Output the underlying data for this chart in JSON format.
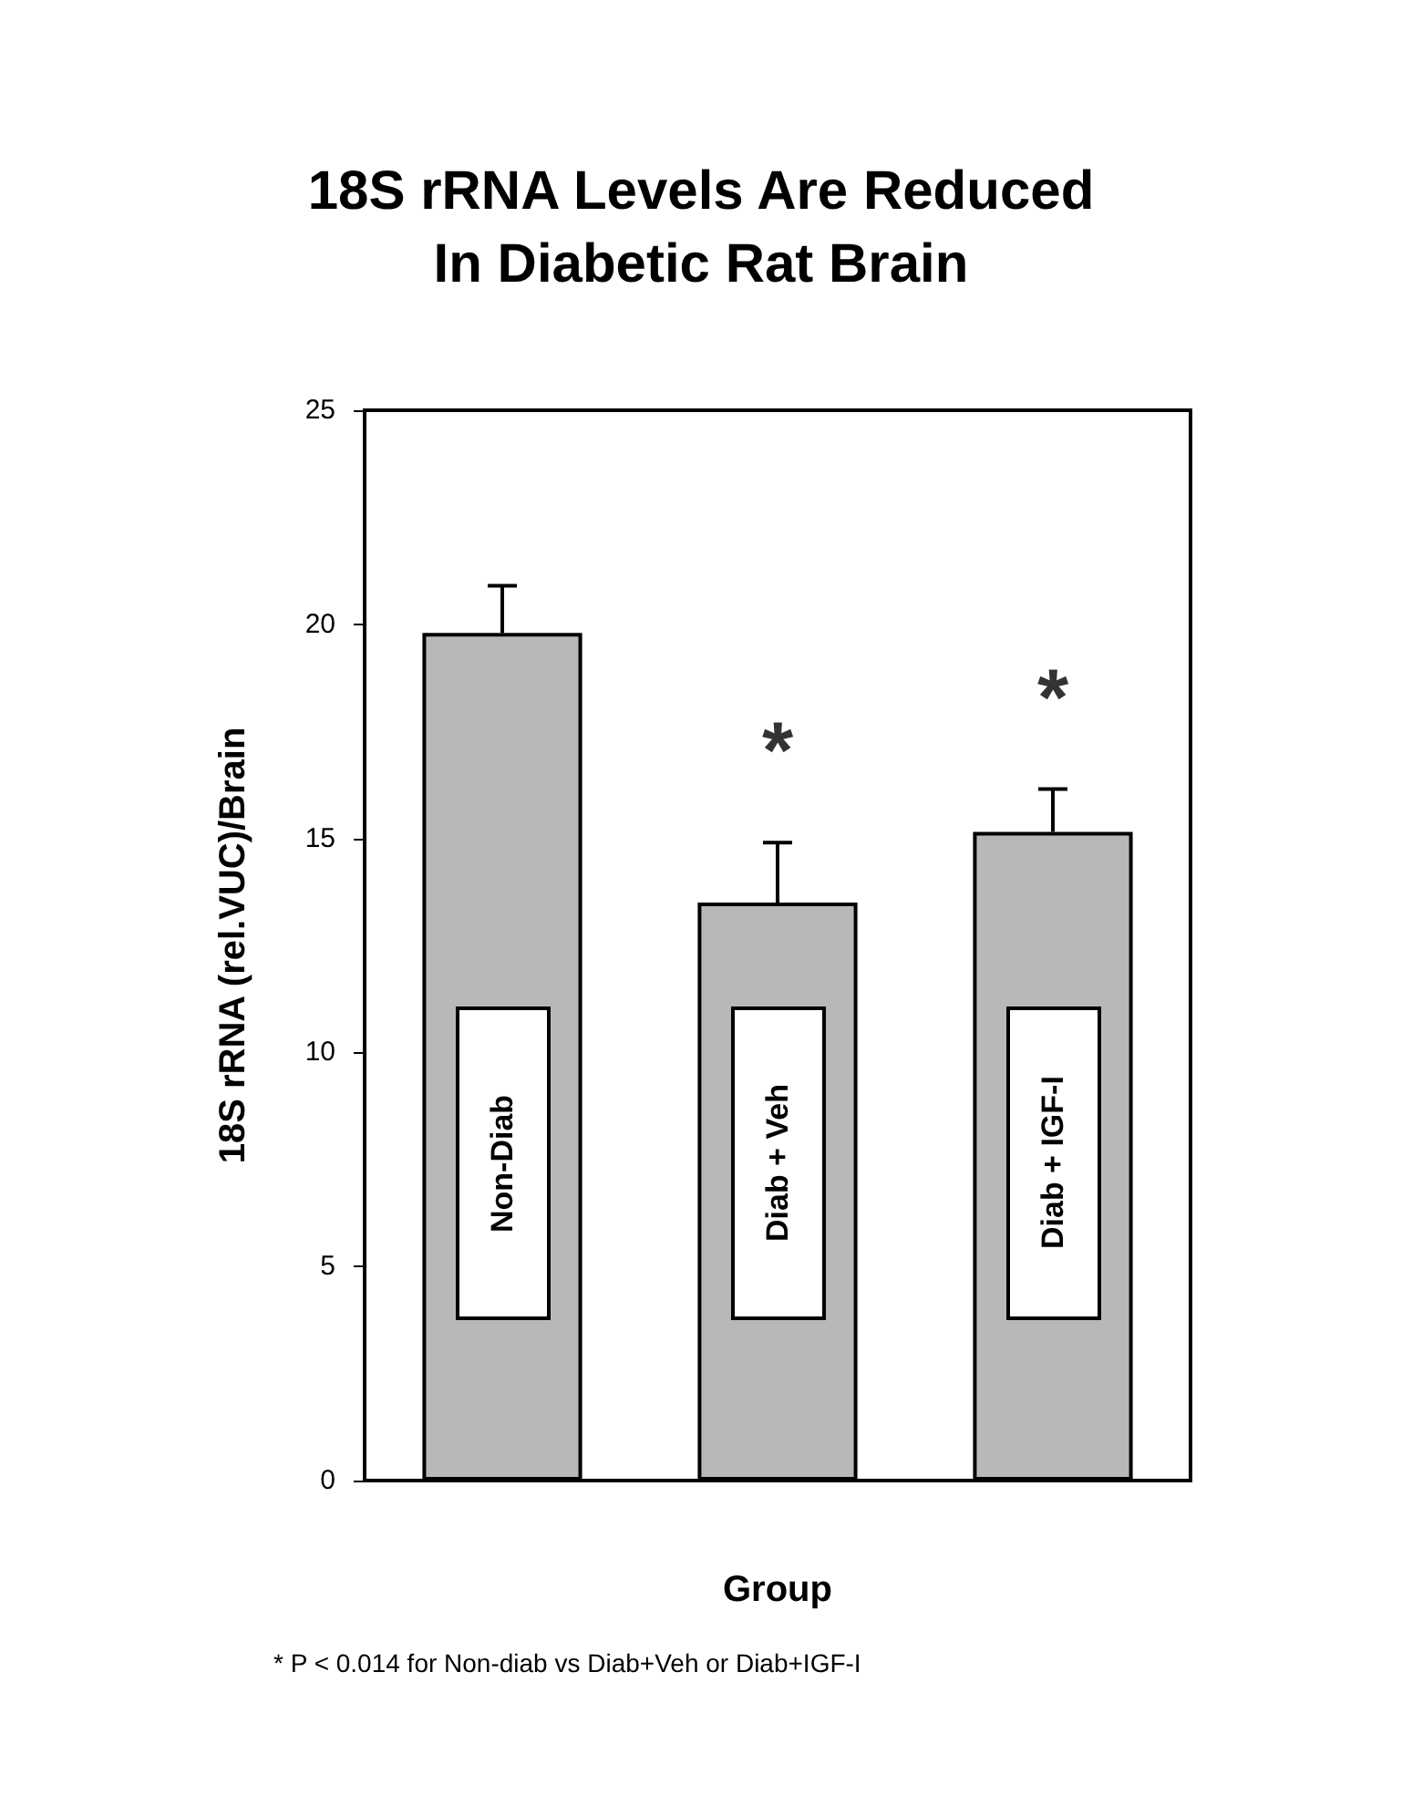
{
  "chart_data": {
    "type": "bar",
    "title": "18S rRNA Levels Are Reduced\nIn Diabetic Rat Brain",
    "xlabel": "Group",
    "ylabel": "18S rRNA (rel.VUC)/Brain",
    "categories": [
      "Non-Diab",
      "Diab + Veh",
      "Diab + IGF-I"
    ],
    "values": [
      19.8,
      13.5,
      15.15
    ],
    "errors": [
      [
        19.8,
        20.9
      ],
      [
        13.5,
        14.9
      ],
      [
        15.15,
        16.15
      ]
    ],
    "color": "#b8b8b8",
    "ylim": [
      0,
      25
    ],
    "yticks": [
      0,
      5,
      10,
      15,
      20,
      25
    ],
    "grid": false,
    "annotations": [
      {
        "text": "*",
        "x": "Diab + Veh",
        "y": 14.9
      },
      {
        "text": "*",
        "x": "Diab + IGF-I",
        "y": 16.15
      },
      "* P < 0.014 for Non-diab vs Diab+Veh or Diab+IGF-I"
    ]
  }
}
